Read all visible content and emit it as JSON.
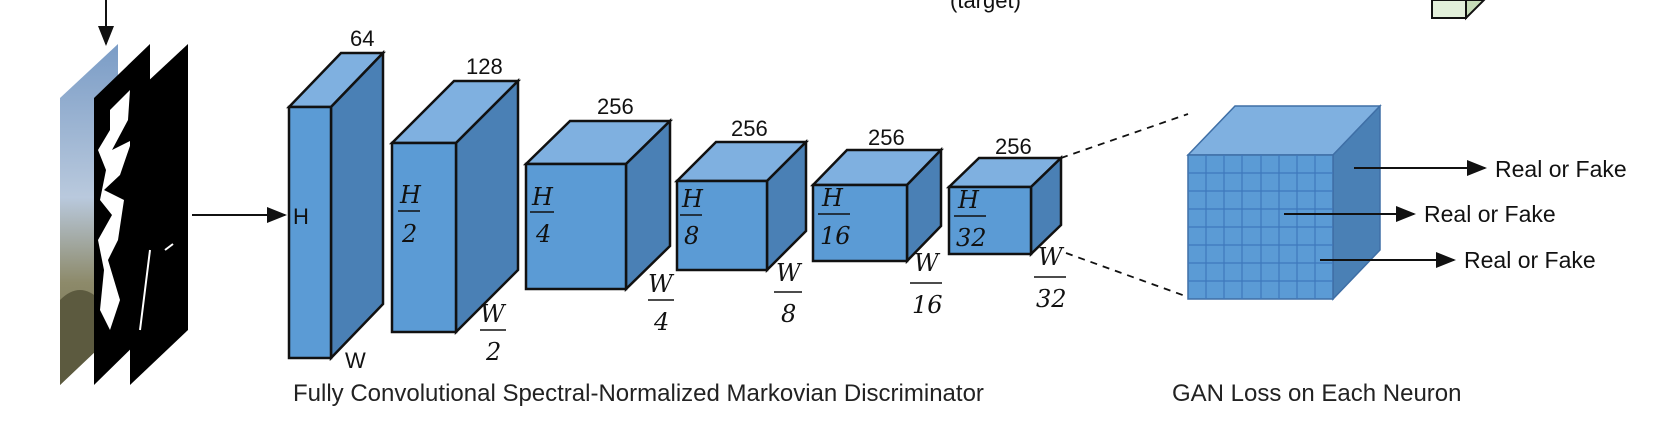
{
  "top_label": "(target)",
  "input_arrow": true,
  "blocks": [
    {
      "channels": "64",
      "h": "H",
      "w": "W",
      "h_is_frac": false
    },
    {
      "channels": "128",
      "h_num": "H",
      "h_den": "2",
      "w_num": "W",
      "w_den": "2"
    },
    {
      "channels": "256",
      "h_num": "H",
      "h_den": "4",
      "w_num": "W",
      "w_den": "4"
    },
    {
      "channels": "256",
      "h_num": "H",
      "h_den": "8",
      "w_num": "W",
      "w_den": "8"
    },
    {
      "channels": "256",
      "h_num": "H",
      "h_den": "16",
      "w_num": "W",
      "w_den": "16"
    },
    {
      "channels": "256",
      "h_num": "H",
      "h_den": "32",
      "w_num": "W",
      "w_den": "32"
    }
  ],
  "outputs": [
    "Real or Fake",
    "Real or Fake",
    "Real or Fake"
  ],
  "captions": {
    "discriminator": "Fully Convolutional Spectral-Normalized Markovian Discriminator",
    "loss": "GAN Loss on Each Neuron"
  },
  "colors": {
    "front": "#5b9bd5",
    "top": "#7fb0e0",
    "side": "#4a80b5",
    "stroke": "#111111",
    "grid_line": "#4a7fc0",
    "green_cube": "#e2efda"
  }
}
